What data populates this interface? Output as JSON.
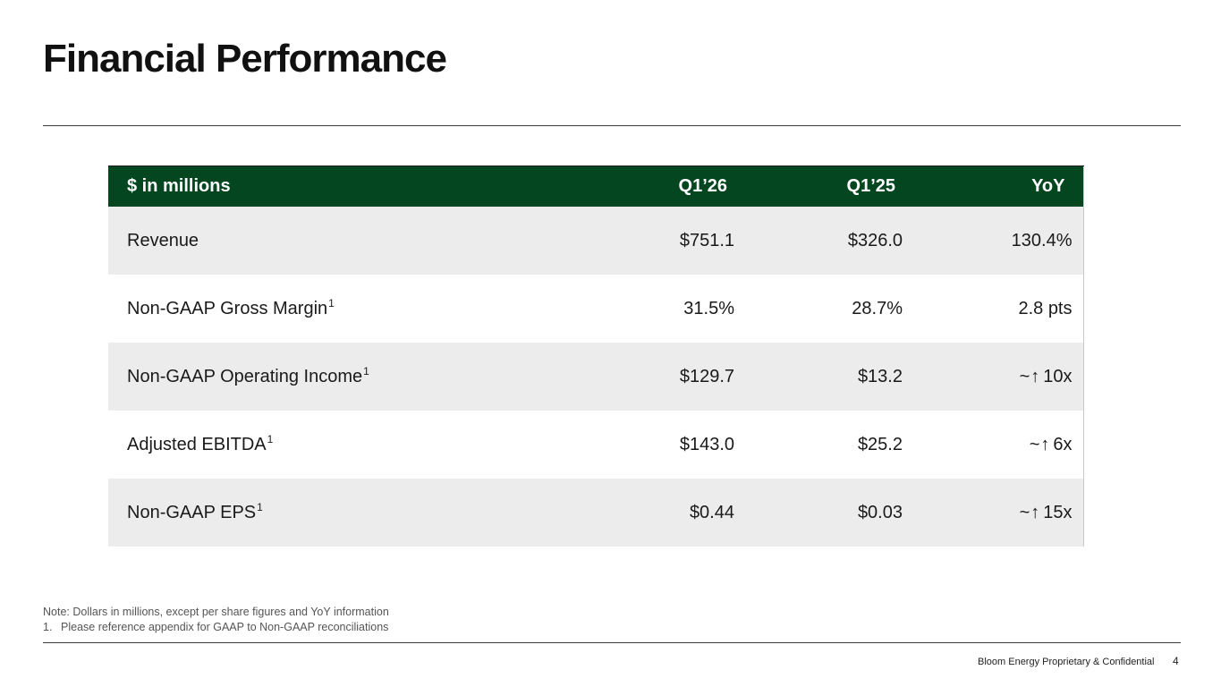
{
  "slide": {
    "title": "Financial Performance",
    "page_number": "4",
    "footer": "Bloom Energy Proprietary & Confidential"
  },
  "table": {
    "headers": [
      "$ in millions",
      "Q1’26",
      "Q1’25",
      "YoY"
    ],
    "rows": [
      {
        "label": "Revenue",
        "sup": "",
        "q126": "$751.1",
        "q125": "$326.0",
        "yoy_prefix": "",
        "yoy_arrow": "",
        "yoy": "130.4%"
      },
      {
        "label": "Non-GAAP Gross Margin",
        "sup": "1",
        "q126": "31.5%",
        "q125": "28.7%",
        "yoy_prefix": "",
        "yoy_arrow": "",
        "yoy": "2.8 pts"
      },
      {
        "label": "Non-GAAP Operating Income",
        "sup": "1",
        "q126": "$129.7",
        "q125": "$13.2",
        "yoy_prefix": "~",
        "yoy_arrow": "↑",
        "yoy": "10x"
      },
      {
        "label": "Adjusted EBITDA",
        "sup": "1",
        "q126": "$143.0",
        "q125": "$25.2",
        "yoy_prefix": "~",
        "yoy_arrow": "↑",
        "yoy": "6x"
      },
      {
        "label": "Non-GAAP EPS",
        "sup": "1",
        "q126": "$0.44",
        "q125": "$0.03",
        "yoy_prefix": "~",
        "yoy_arrow": "↑",
        "yoy": "15x"
      }
    ],
    "colors": {
      "header_bg": "#034620",
      "header_text": "#ffffff",
      "shaded_row": "#ececec"
    }
  },
  "notes": {
    "note": "Note:  Dollars in millions, except per share figures and YoY information",
    "footnote_number": "1.",
    "footnote": "Please reference appendix for GAAP to Non-GAAP reconciliations"
  },
  "icons": {
    "up_arrow": "arrow-up-icon"
  }
}
